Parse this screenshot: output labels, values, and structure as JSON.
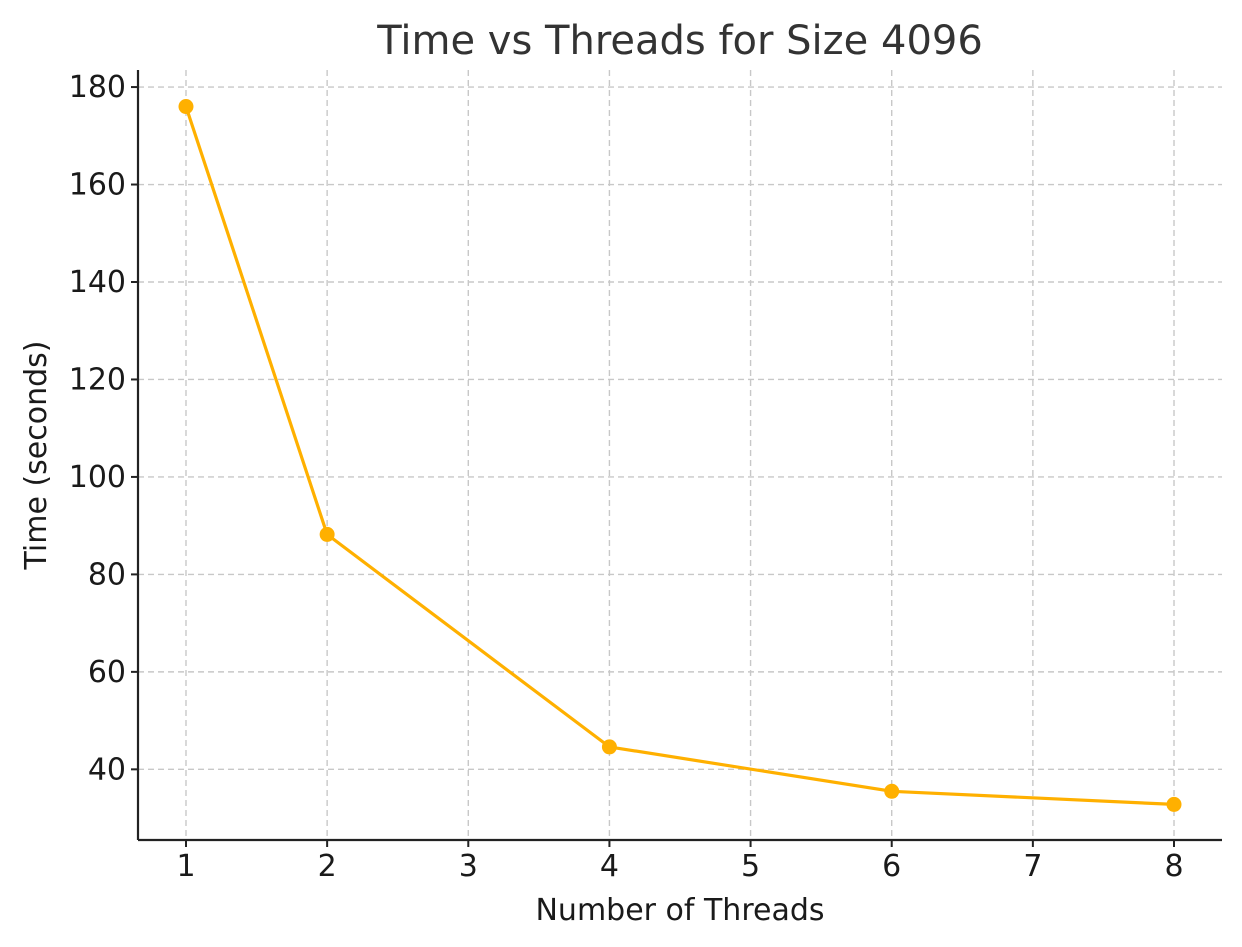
{
  "chart_data": {
    "type": "line",
    "title": "Time vs Threads for Size 4096",
    "xlabel": "Number of Threads",
    "ylabel": "Time (seconds)",
    "xlim": [
      0.66,
      8.34
    ],
    "ylim": [
      25.5,
      183.5
    ],
    "x_ticks": [
      1,
      2,
      3,
      4,
      5,
      6,
      7,
      8
    ],
    "y_ticks": [
      40,
      60,
      80,
      100,
      120,
      140,
      160,
      180
    ],
    "grid": true,
    "color": "#FFB000",
    "series": [
      {
        "x": [
          1,
          2,
          4,
          6,
          8
        ],
        "y": [
          176,
          88.2,
          44.6,
          35.5,
          32.8
        ]
      }
    ]
  }
}
